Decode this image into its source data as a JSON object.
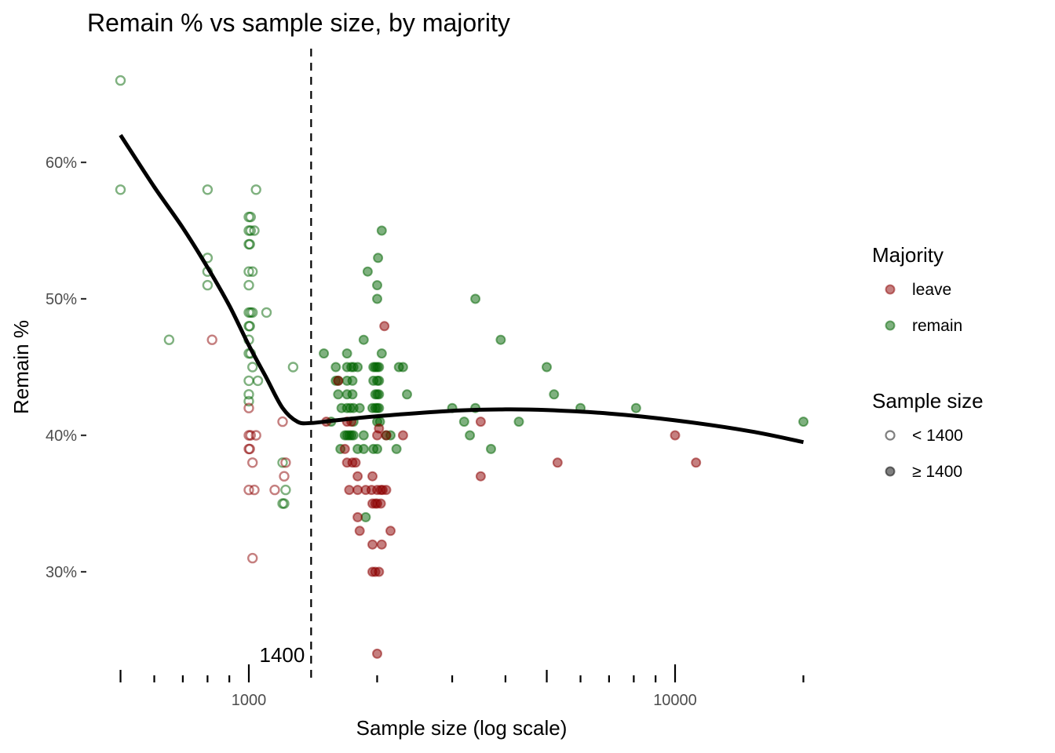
{
  "chart_data": {
    "type": "scatter",
    "title": "Remain % vs sample size, by majority",
    "xlabel": "Sample size (log scale)",
    "ylabel": "Remain %",
    "x_scale": "log10",
    "xlim": [
      500,
      20000
    ],
    "ylim": [
      24,
      66
    ],
    "x_ticks": [
      {
        "value": 500,
        "label": "",
        "major": true
      },
      {
        "value": 600,
        "label": "",
        "major": false
      },
      {
        "value": 700,
        "label": "",
        "major": false
      },
      {
        "value": 800,
        "label": "",
        "major": false
      },
      {
        "value": 900,
        "label": "",
        "major": false
      },
      {
        "value": 1000,
        "label": "1000",
        "major": true
      },
      {
        "value": 1400,
        "label": "",
        "major": false,
        "dashed": true
      },
      {
        "value": 2000,
        "label": "",
        "major": false
      },
      {
        "value": 3000,
        "label": "",
        "major": false
      },
      {
        "value": 4000,
        "label": "",
        "major": false
      },
      {
        "value": 5000,
        "label": "",
        "major": true
      },
      {
        "value": 6000,
        "label": "",
        "major": false
      },
      {
        "value": 7000,
        "label": "",
        "major": false
      },
      {
        "value": 8000,
        "label": "",
        "major": false
      },
      {
        "value": 9000,
        "label": "",
        "major": false
      },
      {
        "value": 10000,
        "label": "10000",
        "major": true
      },
      {
        "value": 20000,
        "label": "",
        "major": false
      }
    ],
    "y_ticks": [
      {
        "value": 30,
        "label": "30%"
      },
      {
        "value": 40,
        "label": "40%"
      },
      {
        "value": 50,
        "label": "50%"
      },
      {
        "value": 60,
        "label": "60%"
      }
    ],
    "grid": false,
    "reference_line": {
      "axis": "x",
      "value": 1400,
      "label": "1400",
      "style": "dashed"
    },
    "colors": {
      "leave": "#8b0000",
      "remain": "#006400",
      "smooth": "#000000"
    },
    "legend": {
      "placement": "right",
      "groups": [
        {
          "title": "Majority",
          "entries": [
            {
              "label": "leave",
              "key": "leave"
            },
            {
              "label": "remain",
              "key": "remain"
            }
          ]
        },
        {
          "title": "Sample size",
          "entries": [
            {
              "label": "< 1400",
              "key": "small"
            },
            {
              "label": "≥ 1400",
              "key": "large"
            }
          ]
        }
      ]
    },
    "smooth_curve": {
      "x": [
        500,
        600,
        700,
        800,
        900,
        1000,
        1100,
        1200,
        1300,
        1400,
        1600,
        2000,
        3000,
        4000,
        5000,
        7000,
        10000,
        15000,
        20000
      ],
      "y": [
        62,
        58.2,
        55.2,
        52.3,
        49.5,
        46.6,
        44.2,
        42.0,
        41.0,
        40.9,
        41.1,
        41.4,
        41.8,
        41.9,
        41.85,
        41.6,
        41.1,
        40.3,
        39.5
      ]
    },
    "series": [
      {
        "name": "remain, < 1400",
        "majority": "remain",
        "sample": "small",
        "points": [
          [
            500,
            66
          ],
          [
            500,
            58
          ],
          [
            650,
            47
          ],
          [
            800,
            58
          ],
          [
            800,
            53
          ],
          [
            800,
            52
          ],
          [
            800,
            51
          ],
          [
            1040,
            58
          ],
          [
            1000,
            56
          ],
          [
            1010,
            56
          ],
          [
            1000,
            55
          ],
          [
            1010,
            55
          ],
          [
            1030,
            55
          ],
          [
            1000,
            54
          ],
          [
            1005,
            54
          ],
          [
            1000,
            52
          ],
          [
            1020,
            52
          ],
          [
            1000,
            51
          ],
          [
            1000,
            49
          ],
          [
            1010,
            49
          ],
          [
            1020,
            49
          ],
          [
            1100,
            49
          ],
          [
            1000,
            48
          ],
          [
            1005,
            48
          ],
          [
            1000,
            47
          ],
          [
            1000,
            46
          ],
          [
            1010,
            46
          ],
          [
            1020,
            45
          ],
          [
            1050,
            44
          ],
          [
            1000,
            44
          ],
          [
            1000,
            43
          ],
          [
            1000,
            42.5
          ],
          [
            1270,
            45
          ],
          [
            1200,
            38
          ],
          [
            1220,
            36
          ],
          [
            1200,
            35
          ],
          [
            1210,
            35
          ]
        ]
      },
      {
        "name": "leave, < 1400",
        "majority": "leave",
        "sample": "small",
        "points": [
          [
            820,
            47
          ],
          [
            1000,
            42
          ],
          [
            1200,
            41
          ],
          [
            1000,
            40
          ],
          [
            1010,
            40
          ],
          [
            1040,
            40
          ],
          [
            1000,
            39
          ],
          [
            1005,
            39
          ],
          [
            1020,
            38
          ],
          [
            1220,
            38
          ],
          [
            1210,
            37
          ],
          [
            1000,
            36
          ],
          [
            1030,
            36
          ],
          [
            1150,
            36
          ],
          [
            1020,
            31
          ]
        ]
      },
      {
        "name": "remain, ≥ 1400",
        "majority": "remain",
        "sample": "large",
        "points": [
          [
            1500,
            46
          ],
          [
            1700,
            46
          ],
          [
            1600,
            45
          ],
          [
            1700,
            45
          ],
          [
            1740,
            45
          ],
          [
            1760,
            45
          ],
          [
            1800,
            45
          ],
          [
            1960,
            45
          ],
          [
            1980,
            45
          ],
          [
            2000,
            45
          ],
          [
            2020,
            45
          ],
          [
            2250,
            45
          ],
          [
            2300,
            45
          ],
          [
            1600,
            44
          ],
          [
            1620,
            44
          ],
          [
            1700,
            44
          ],
          [
            1750,
            44
          ],
          [
            1960,
            44
          ],
          [
            2000,
            44
          ],
          [
            2020,
            44
          ],
          [
            1620,
            43
          ],
          [
            1700,
            43
          ],
          [
            1750,
            43
          ],
          [
            1980,
            43
          ],
          [
            2000,
            43
          ],
          [
            2020,
            43
          ],
          [
            2350,
            43
          ],
          [
            1650,
            42
          ],
          [
            1700,
            42
          ],
          [
            1730,
            42
          ],
          [
            1760,
            42
          ],
          [
            1820,
            42
          ],
          [
            1950,
            42
          ],
          [
            1980,
            42
          ],
          [
            2000,
            42
          ],
          [
            2020,
            42
          ],
          [
            1560,
            41
          ],
          [
            1760,
            41
          ],
          [
            2000,
            41
          ],
          [
            2030,
            41
          ],
          [
            1680,
            40
          ],
          [
            1700,
            40
          ],
          [
            1720,
            40
          ],
          [
            1740,
            40
          ],
          [
            1760,
            40
          ],
          [
            1860,
            40
          ],
          [
            2100,
            40
          ],
          [
            2150,
            40
          ],
          [
            1640,
            39
          ],
          [
            1800,
            39
          ],
          [
            1860,
            39
          ],
          [
            1960,
            39
          ],
          [
            2000,
            39
          ],
          [
            2220,
            39
          ],
          [
            1880,
            34
          ],
          [
            1860,
            47
          ],
          [
            1900,
            52
          ],
          [
            2000,
            50
          ],
          [
            2000,
            51
          ],
          [
            2010,
            53
          ],
          [
            2050,
            55
          ],
          [
            2050,
            46
          ],
          [
            3000,
            42
          ],
          [
            3200,
            41
          ],
          [
            3300,
            40
          ],
          [
            3400,
            42
          ],
          [
            3400,
            50
          ],
          [
            3700,
            39
          ],
          [
            3900,
            47
          ],
          [
            4300,
            41
          ],
          [
            5000,
            45
          ],
          [
            5200,
            43
          ],
          [
            6000,
            42
          ],
          [
            8100,
            42
          ],
          [
            20000,
            41
          ]
        ]
      },
      {
        "name": "leave, ≥ 1400",
        "majority": "leave",
        "sample": "large",
        "points": [
          [
            2080,
            48
          ],
          [
            1620,
            44
          ],
          [
            1520,
            41
          ],
          [
            1700,
            41
          ],
          [
            1740,
            41
          ],
          [
            2020,
            40.5
          ],
          [
            2100,
            40
          ],
          [
            2300,
            40
          ],
          [
            2000,
            40
          ],
          [
            1680,
            39
          ],
          [
            3500,
            41
          ],
          [
            1700,
            38
          ],
          [
            1750,
            38
          ],
          [
            1780,
            38
          ],
          [
            1800,
            37
          ],
          [
            1950,
            37
          ],
          [
            2100,
            36
          ],
          [
            1720,
            36
          ],
          [
            1800,
            36
          ],
          [
            1880,
            36
          ],
          [
            1940,
            36
          ],
          [
            2000,
            36
          ],
          [
            2040,
            36
          ],
          [
            2060,
            36
          ],
          [
            1950,
            35
          ],
          [
            1980,
            35
          ],
          [
            2000,
            35
          ],
          [
            2040,
            35
          ],
          [
            1800,
            34
          ],
          [
            1820,
            33
          ],
          [
            2150,
            33
          ],
          [
            1950,
            32
          ],
          [
            2050,
            32
          ],
          [
            1950,
            30
          ],
          [
            1980,
            30
          ],
          [
            2020,
            30
          ],
          [
            2000,
            24
          ],
          [
            3500,
            37
          ],
          [
            5300,
            38
          ],
          [
            10000,
            40
          ],
          [
            11200,
            38
          ]
        ]
      }
    ]
  }
}
